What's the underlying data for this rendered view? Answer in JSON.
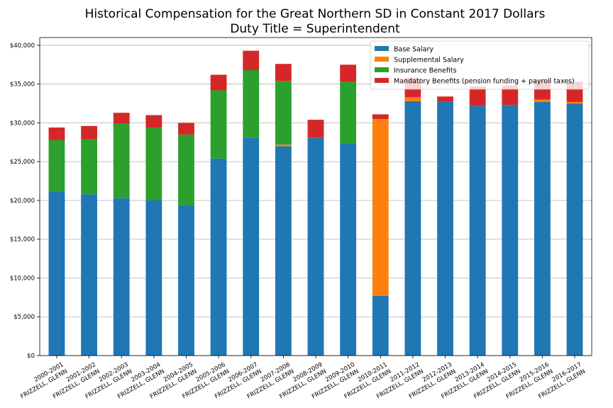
{
  "chart_data": {
    "type": "bar",
    "stacked": true,
    "title_line1": "Historical Compensation for the Great Northern SD in Constant 2017 Dollars",
    "title_line2": "Duty Title = Superintendent",
    "xlabel": "",
    "ylabel": "",
    "ylim": [
      0,
      41000
    ],
    "yticks": [
      0,
      5000,
      10000,
      15000,
      20000,
      25000,
      30000,
      35000,
      40000
    ],
    "ytick_labels": [
      "$0",
      "$5,000",
      "$10,000",
      "$15,000",
      "$20,000",
      "$25,000",
      "$30,000",
      "$35,000",
      "$40,000"
    ],
    "grid": true,
    "legend_position": "top-right",
    "categories": [
      [
        "2000-2001",
        "FRIZZELL, GLENN"
      ],
      [
        "2001-2002",
        "FRIZZELL, GLENN"
      ],
      [
        "2002-2003",
        "FRIZZELL, GLENN"
      ],
      [
        "2003-2004",
        "FRIZZELL, GLENN"
      ],
      [
        "2004-2005",
        "FRIZZELL, GLENN"
      ],
      [
        "2005-2006",
        "FRIZZELL, GLENN"
      ],
      [
        "2006-2007",
        "FRIZZELL, GLENN"
      ],
      [
        "2007-2008",
        "FRIZZELL, GLENN"
      ],
      [
        "2008-2009",
        "FRIZZELL, GLENN"
      ],
      [
        "2009-2010",
        "FRIZZELL, GLENN"
      ],
      [
        "2010-2011",
        "FRIZZELL, GLENN"
      ],
      [
        "2011-2012",
        "FRIZZELL, GLENN"
      ],
      [
        "2012-2013",
        "FRIZZELL, GLENN"
      ],
      [
        "2013-2014",
        "FRIZZELL, GLENN"
      ],
      [
        "2014-2015",
        "FRIZZELL, GLENN"
      ],
      [
        "2015-2016",
        "FRIZZELL, GLENN"
      ],
      [
        "2016-2017",
        "FRIZZELL, GLENN"
      ]
    ],
    "series": [
      {
        "name": "Base Salary",
        "color": "#1f77b4",
        "values": [
          21100,
          20800,
          20300,
          20000,
          19400,
          25400,
          28100,
          27000,
          28100,
          27300,
          7700,
          32800,
          32700,
          32200,
          32300,
          32700,
          32500
        ]
      },
      {
        "name": "Supplemental Salary",
        "color": "#ff7f0e",
        "values": [
          0,
          0,
          0,
          0,
          0,
          0,
          0,
          200,
          0,
          0,
          22800,
          500,
          0,
          0,
          0,
          300,
          200
        ]
      },
      {
        "name": "Insurance Benefits",
        "color": "#2ca02c",
        "values": [
          6700,
          7100,
          9600,
          9400,
          9100,
          8800,
          8700,
          8200,
          0,
          8000,
          0,
          0,
          0,
          0,
          0,
          0,
          0
        ]
      },
      {
        "name": "Mandatory Benefits (pension funding + payroll taxes)",
        "color": "#d62728",
        "values": [
          1600,
          1700,
          1400,
          1600,
          1500,
          2000,
          2500,
          2200,
          2300,
          2200,
          600,
          2500,
          700,
          2500,
          2500,
          2500,
          2600
        ]
      }
    ]
  }
}
